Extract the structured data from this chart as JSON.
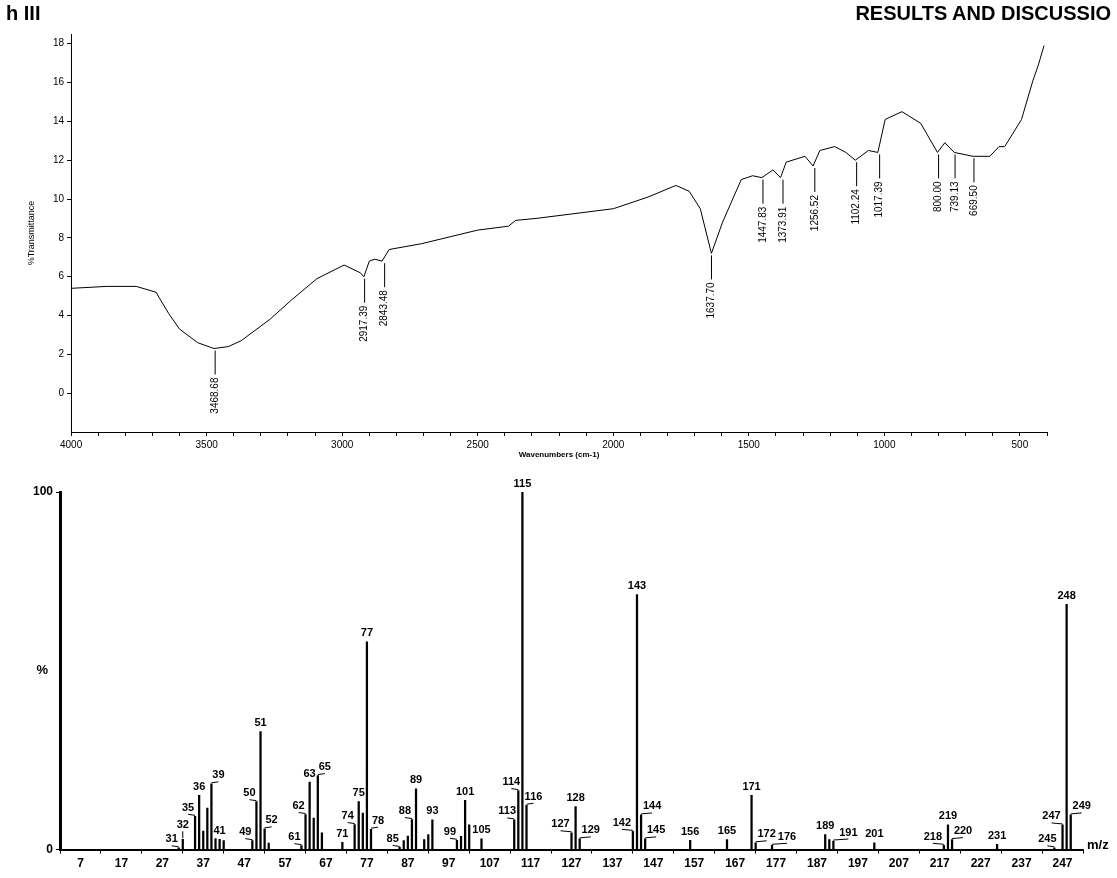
{
  "chart_data": [
    {
      "type": "line",
      "xlabel": "Wavenumbers (cm-1)",
      "ylabel": "%Transmittance",
      "color": "#000000",
      "grid": false,
      "legend": false,
      "x": [
        4000,
        3867,
        3760,
        3687,
        3640,
        3600,
        3533,
        3473,
        3420,
        3373,
        3267,
        3187,
        3093,
        2993,
        2933,
        2920,
        2900,
        2880,
        2853,
        2827,
        2707,
        2500,
        2387,
        2360,
        2285,
        2000,
        1872,
        1769,
        1720,
        1679,
        1638,
        1597,
        1528,
        1486,
        1452,
        1411,
        1383,
        1362,
        1293,
        1263,
        1238,
        1183,
        1142,
        1107,
        1059,
        1024,
        997,
        935,
        866,
        804,
        777,
        742,
        673,
        611,
        577,
        556,
        494,
        452,
        432,
        411
      ],
      "values": [
        5.4,
        5.5,
        5.5,
        5.2,
        4.1,
        3.3,
        2.6,
        2.3,
        2.4,
        2.7,
        3.8,
        4.8,
        5.9,
        6.6,
        6.2,
        6.0,
        6.8,
        6.9,
        6.8,
        7.4,
        7.7,
        8.4,
        8.6,
        8.9,
        9.0,
        9.5,
        10.1,
        10.7,
        10.4,
        9.5,
        7.2,
        8.8,
        11.0,
        11.2,
        11.1,
        11.5,
        11.1,
        11.9,
        12.2,
        11.7,
        12.5,
        12.7,
        12.4,
        12.0,
        12.5,
        12.4,
        14.1,
        14.5,
        13.9,
        12.4,
        12.9,
        12.4,
        12.2,
        12.2,
        12.7,
        12.7,
        14.1,
        16.1,
        16.9,
        17.9
      ],
      "xlim": [
        4000,
        400
      ],
      "ylim": [
        -2,
        18.5
      ],
      "xticks": [
        {
          "value": 4000,
          "label": "4000"
        },
        {
          "value": 3900,
          "label": null
        },
        {
          "value": 3800,
          "label": null
        },
        {
          "value": 3700,
          "label": null
        },
        {
          "value": 3600,
          "label": null
        },
        {
          "value": 3500,
          "label": "3500"
        },
        {
          "value": 3400,
          "label": null
        },
        {
          "value": 3300,
          "label": null
        },
        {
          "value": 3200,
          "label": null
        },
        {
          "value": 3100,
          "label": null
        },
        {
          "value": 3000,
          "label": "3000"
        },
        {
          "value": 2900,
          "label": null
        },
        {
          "value": 2800,
          "label": null
        },
        {
          "value": 2700,
          "label": null
        },
        {
          "value": 2600,
          "label": null
        },
        {
          "value": 2500,
          "label": "2500"
        },
        {
          "value": 2400,
          "label": null
        },
        {
          "value": 2300,
          "label": null
        },
        {
          "value": 2200,
          "label": null
        },
        {
          "value": 2100,
          "label": null
        },
        {
          "value": 2000,
          "label": "2000"
        },
        {
          "value": 1900,
          "label": null
        },
        {
          "value": 1800,
          "label": null
        },
        {
          "value": 1700,
          "label": null
        },
        {
          "value": 1600,
          "label": null
        },
        {
          "value": 1500,
          "label": "1500"
        },
        {
          "value": 1400,
          "label": null
        },
        {
          "value": 1300,
          "label": null
        },
        {
          "value": 1200,
          "label": null
        },
        {
          "value": 1100,
          "label": null
        },
        {
          "value": 1000,
          "label": "1000"
        },
        {
          "value": 900,
          "label": null
        },
        {
          "value": 800,
          "label": null
        },
        {
          "value": 700,
          "label": null
        },
        {
          "value": 600,
          "label": null
        },
        {
          "value": 500,
          "label": "500"
        },
        {
          "value": 400,
          "label": null
        }
      ],
      "yticks": [
        0,
        2,
        4,
        6,
        8,
        10,
        12,
        14,
        16,
        18
      ],
      "annotations": [
        "h III",
        "RESULTS AND DISCUSSIO",
        {
          "text": "3468.68",
          "x": 3468.68,
          "y": 2.3
        },
        {
          "text": "2917.39",
          "x": 2917.39,
          "y": 6.0
        },
        {
          "text": "2843.48",
          "x": 2843.48,
          "y": 6.8
        },
        {
          "text": "1637.70",
          "x": 1637.7,
          "y": 7.2
        },
        {
          "text": "1447.83",
          "x": 1447.83,
          "y": 11.1
        },
        {
          "text": "1373.91",
          "x": 1373.91,
          "y": 11.1
        },
        {
          "text": "1256.52",
          "x": 1256.52,
          "y": 11.7
        },
        {
          "text": "1102.24",
          "x": 1102.24,
          "y": 12.0
        },
        {
          "text": "1017.39",
          "x": 1017.39,
          "y": 12.4
        },
        {
          "text": "800.00",
          "x": 800,
          "y": 12.4
        },
        {
          "text": "739.13",
          "x": 739.13,
          "y": 12.4
        },
        {
          "text": "669.50",
          "x": 669.5,
          "y": 12.2
        }
      ]
    },
    {
      "type": "bar",
      "xlabel": "m/z",
      "ylabel": "%",
      "color": "#000000",
      "grid": false,
      "legend": false,
      "x": [
        31,
        32,
        35,
        36,
        37,
        38,
        39,
        40,
        41,
        42,
        49,
        50,
        51,
        52,
        53,
        61,
        62,
        63,
        64,
        65,
        66,
        71,
        74,
        75,
        76,
        77,
        78,
        85,
        86,
        87,
        88,
        89,
        91,
        92,
        93,
        99,
        100,
        101,
        102,
        105,
        113,
        114,
        115,
        116,
        127,
        128,
        129,
        142,
        143,
        144,
        145,
        156,
        165,
        171,
        172,
        176,
        189,
        190,
        191,
        201,
        218,
        219,
        220,
        231,
        245,
        247,
        248,
        249
      ],
      "values": [
        0.5,
        2.9,
        9.3,
        15.2,
        5.2,
        11.6,
        18.4,
        3.1,
        2.9,
        2.5,
        2.5,
        13.4,
        33.0,
        5.8,
        1.8,
        1.1,
        9.8,
        18.9,
        8.8,
        20.7,
        4.7,
        2.0,
        7.0,
        13.4,
        10.2,
        58.1,
        5.7,
        0.6,
        2.5,
        3.8,
        8.4,
        17.0,
        2.8,
        4.2,
        8.3,
        2.6,
        3.7,
        13.8,
        6.9,
        3.0,
        8.3,
        16.5,
        100,
        12.4,
        4.7,
        12.0,
        3.0,
        5.1,
        71.3,
        9.7,
        3.0,
        2.6,
        2.8,
        15.2,
        1.9,
        1.2,
        4.2,
        2.8,
        2.4,
        1.9,
        1.2,
        6.9,
        2.8,
        1.5,
        0.5,
        6.9,
        68.6,
        9.7
      ],
      "xlim": [
        2,
        252
      ],
      "ylim": [
        0,
        100
      ],
      "xticks": [
        7,
        17,
        27,
        37,
        47,
        57,
        67,
        77,
        87,
        97,
        107,
        117,
        127,
        137,
        147,
        157,
        167,
        177,
        187,
        197,
        207,
        217,
        227,
        237,
        247
      ],
      "yticks": [
        0,
        100
      ],
      "annotations": [
        {
          "text": "31",
          "x": 31,
          "y": 0.5
        },
        {
          "text": "32",
          "x": 32,
          "y": 2.9
        },
        {
          "text": "35",
          "x": 35,
          "y": 9.3
        },
        {
          "text": "36",
          "x": 36,
          "y": 15.2
        },
        {
          "text": "39",
          "x": 39,
          "y": 18.4
        },
        {
          "text": "41",
          "x": 41,
          "y": 2.9
        },
        {
          "text": "49",
          "x": 49,
          "y": 2.5
        },
        {
          "text": "50",
          "x": 50,
          "y": 13.4
        },
        {
          "text": "51",
          "x": 51,
          "y": 33.0
        },
        {
          "text": "52",
          "x": 52,
          "y": 5.8
        },
        {
          "text": "61",
          "x": 61,
          "y": 1.1
        },
        {
          "text": "62",
          "x": 62,
          "y": 9.8
        },
        {
          "text": "63",
          "x": 63,
          "y": 18.9
        },
        {
          "text": "65",
          "x": 65,
          "y": 20.7
        },
        {
          "text": "71",
          "x": 71,
          "y": 2.0
        },
        {
          "text": "74",
          "x": 74,
          "y": 7.0
        },
        {
          "text": "75",
          "x": 75,
          "y": 13.4
        },
        {
          "text": "77",
          "x": 77,
          "y": 58.1
        },
        {
          "text": "78",
          "x": 78,
          "y": 5.7
        },
        {
          "text": "85",
          "x": 85,
          "y": 0.6
        },
        {
          "text": "88",
          "x": 88,
          "y": 8.4
        },
        {
          "text": "89",
          "x": 89,
          "y": 17.0
        },
        {
          "text": "93",
          "x": 93,
          "y": 8.3
        },
        {
          "text": "99",
          "x": 99,
          "y": 2.6
        },
        {
          "text": "101",
          "x": 101,
          "y": 13.8
        },
        {
          "text": "105",
          "x": 105,
          "y": 3.0
        },
        {
          "text": "113",
          "x": 113,
          "y": 8.3
        },
        {
          "text": "114",
          "x": 114,
          "y": 16.5
        },
        {
          "text": "115",
          "x": 115,
          "y": 100
        },
        {
          "text": "116",
          "x": 116,
          "y": 12.4
        },
        {
          "text": "127",
          "x": 127,
          "y": 4.7
        },
        {
          "text": "128",
          "x": 128,
          "y": 12.0
        },
        {
          "text": "129",
          "x": 129,
          "y": 3.0
        },
        {
          "text": "142",
          "x": 142,
          "y": 5.1
        },
        {
          "text": "143",
          "x": 143,
          "y": 71.3
        },
        {
          "text": "144",
          "x": 144,
          "y": 9.7
        },
        {
          "text": "145",
          "x": 145,
          "y": 3.0
        },
        {
          "text": "156",
          "x": 156,
          "y": 2.6
        },
        {
          "text": "165",
          "x": 165,
          "y": 2.8
        },
        {
          "text": "171",
          "x": 171,
          "y": 15.2
        },
        {
          "text": "172",
          "x": 172,
          "y": 1.9
        },
        {
          "text": "176",
          "x": 176,
          "y": 1.2
        },
        {
          "text": "189",
          "x": 189,
          "y": 4.2
        },
        {
          "text": "191",
          "x": 191,
          "y": 2.4
        },
        {
          "text": "201",
          "x": 201,
          "y": 1.9
        },
        {
          "text": "218",
          "x": 218,
          "y": 1.2
        },
        {
          "text": "219",
          "x": 219,
          "y": 6.9
        },
        {
          "text": "220",
          "x": 220,
          "y": 2.8
        },
        {
          "text": "231",
          "x": 231,
          "y": 1.5
        },
        {
          "text": "245",
          "x": 245,
          "y": 0.5
        },
        {
          "text": "247",
          "x": 247,
          "y": 6.9
        },
        {
          "text": "248",
          "x": 248,
          "y": 68.6
        },
        {
          "text": "249",
          "x": 249,
          "y": 9.7
        }
      ]
    }
  ]
}
